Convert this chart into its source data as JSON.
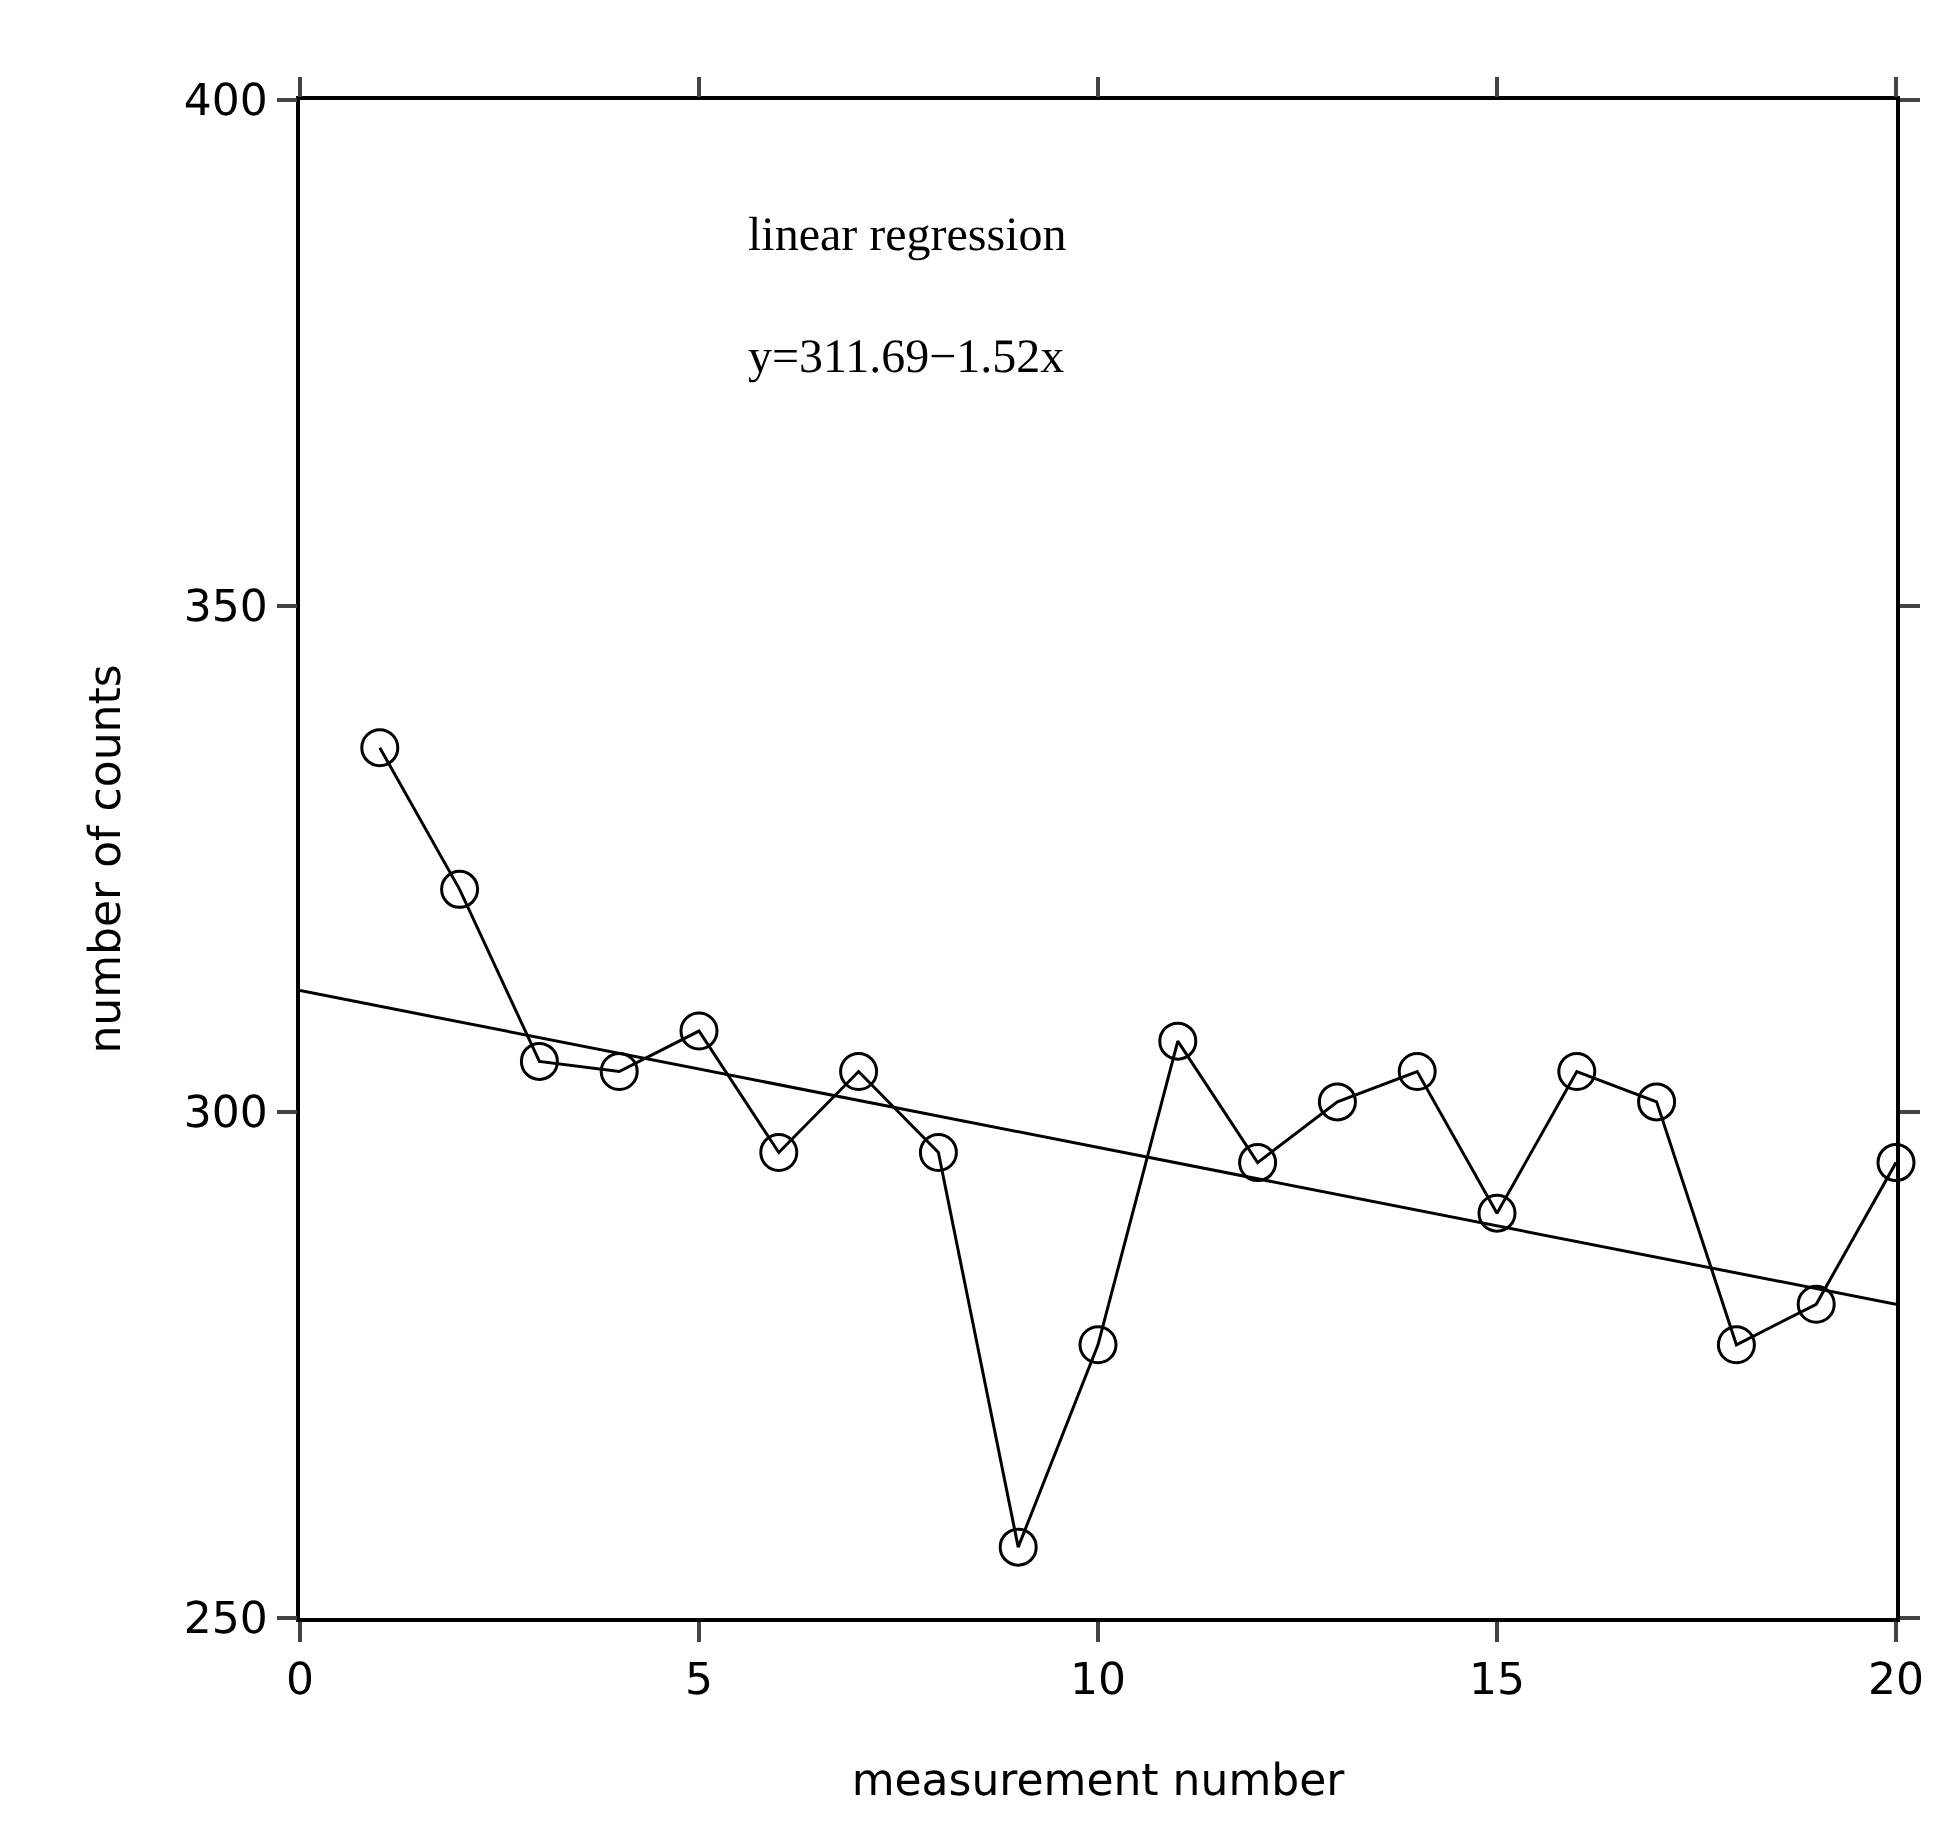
{
  "chart_data": {
    "type": "line",
    "xlabel": "measurement number",
    "ylabel": "number of counts",
    "annotations": [
      "linear regression",
      "y=311.69−1.52x"
    ],
    "xlim": [
      0,
      20
    ],
    "xticks": [
      0,
      5,
      10,
      15,
      20
    ],
    "ylim": [
      250,
      400
    ],
    "yticks": [
      250,
      300,
      350,
      400
    ],
    "series": [
      {
        "x": [
          1,
          2,
          3,
          4,
          5,
          6,
          7,
          8,
          9,
          10,
          11,
          12,
          13,
          14,
          15,
          16,
          17,
          18,
          19,
          20
        ],
        "values": [
          336,
          322,
          305,
          304,
          308,
          296,
          304,
          296,
          257,
          277,
          307,
          295,
          301,
          304,
          290,
          304,
          301,
          277,
          281,
          295
        ],
        "color": "#000000",
        "marker": "circle",
        "line_style": "solid"
      },
      {
        "x": [
          0,
          20
        ],
        "values": [
          312,
          281
        ],
        "color": "#000000",
        "marker": "none",
        "line_style": "solid"
      }
    ]
  }
}
